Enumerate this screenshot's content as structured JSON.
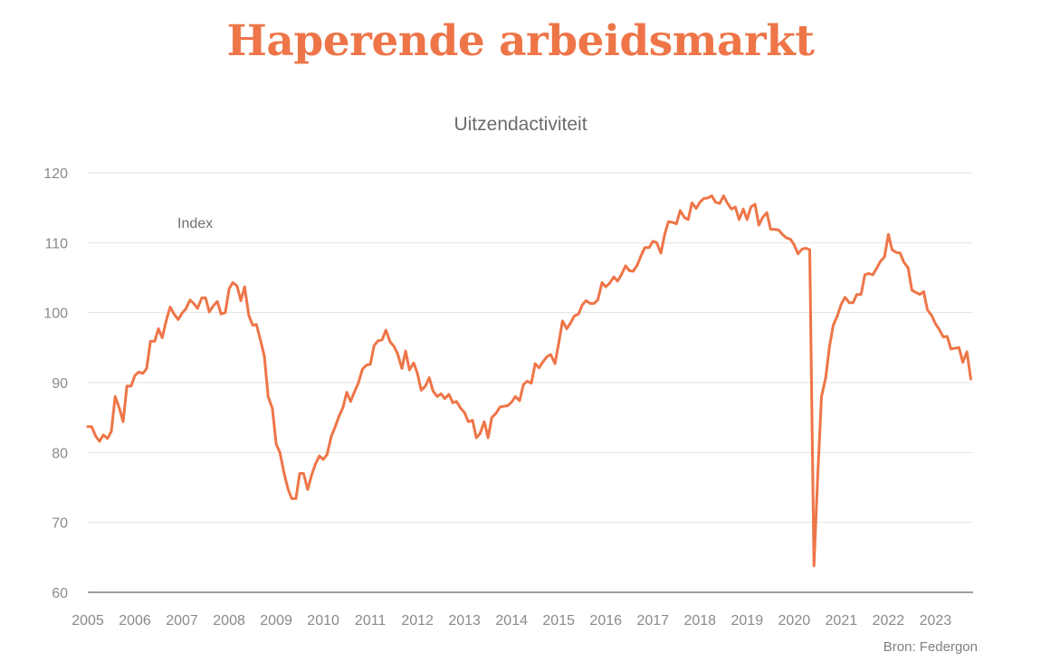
{
  "title": "Haperende arbeidsmarkt",
  "source": "Bron: Federgon",
  "colors": {
    "title": "#EE7548",
    "line": "#EE7548",
    "grid": "#e3e3e3",
    "axis": "#666666"
  },
  "chart_data": {
    "type": "line",
    "title": "Uitzendactiviteit",
    "annotation": "Index",
    "xlabel": "",
    "ylabel": "",
    "ylim": [
      60,
      120
    ],
    "yticks": [
      60,
      70,
      80,
      90,
      100,
      110,
      120
    ],
    "xlim": [
      2005,
      2023.8
    ],
    "xticks": [
      "2005",
      "2006",
      "2007",
      "2008",
      "2009",
      "2010",
      "2011",
      "2012",
      "2013",
      "2014",
      "2015",
      "2016",
      "2017",
      "2018",
      "2019",
      "2020",
      "2021",
      "2022",
      "2023"
    ],
    "grid": true,
    "series": [
      {
        "x": [
          2005.0,
          2005.08,
          2005.17,
          2005.25,
          2005.33,
          2005.42,
          2005.5,
          2005.58,
          2005.67,
          2005.75,
          2005.83,
          2005.92,
          2006.0,
          2006.08,
          2006.17,
          2006.25,
          2006.33,
          2006.42,
          2006.5,
          2006.58,
          2006.67,
          2006.75,
          2006.83,
          2006.92,
          2007.0,
          2007.08,
          2007.17,
          2007.25,
          2007.33,
          2007.42,
          2007.5,
          2007.58,
          2007.67,
          2007.75,
          2007.83,
          2007.92,
          2008.0,
          2008.08,
          2008.17,
          2008.25,
          2008.33,
          2008.42,
          2008.5,
          2008.58,
          2008.67,
          2008.75,
          2008.83,
          2008.92,
          2009.0,
          2009.08,
          2009.17,
          2009.25,
          2009.33,
          2009.42,
          2009.5,
          2009.58,
          2009.67,
          2009.75,
          2009.83,
          2009.92,
          2010.0,
          2010.08,
          2010.17,
          2010.25,
          2010.33,
          2010.42,
          2010.5,
          2010.58,
          2010.67,
          2010.75,
          2010.83,
          2010.92,
          2011.0,
          2011.08,
          2011.17,
          2011.25,
          2011.33,
          2011.42,
          2011.5,
          2011.58,
          2011.67,
          2011.75,
          2011.83,
          2011.92,
          2012.0,
          2012.08,
          2012.17,
          2012.25,
          2012.33,
          2012.42,
          2012.5,
          2012.58,
          2012.67,
          2012.75,
          2012.83,
          2012.92,
          2013.0,
          2013.08,
          2013.17,
          2013.25,
          2013.33,
          2013.42,
          2013.5,
          2013.58,
          2013.67,
          2013.75,
          2013.83,
          2013.92,
          2014.0,
          2014.08,
          2014.17,
          2014.25,
          2014.33,
          2014.42,
          2014.5,
          2014.58,
          2014.67,
          2014.75,
          2014.83,
          2014.92,
          2015.0,
          2015.08,
          2015.17,
          2015.25,
          2015.33,
          2015.42,
          2015.5,
          2015.58,
          2015.67,
          2015.75,
          2015.83,
          2015.92,
          2016.0,
          2016.08,
          2016.17,
          2016.25,
          2016.33,
          2016.42,
          2016.5,
          2016.58,
          2016.67,
          2016.75,
          2016.83,
          2016.92,
          2017.0,
          2017.08,
          2017.17,
          2017.25,
          2017.33,
          2017.42,
          2017.5,
          2017.58,
          2017.67,
          2017.75,
          2017.83,
          2017.92,
          2018.0,
          2018.08,
          2018.17,
          2018.25,
          2018.33,
          2018.42,
          2018.5,
          2018.58,
          2018.67,
          2018.75,
          2018.83,
          2018.92,
          2019.0,
          2019.08,
          2019.17,
          2019.25,
          2019.33,
          2019.42,
          2019.5,
          2019.58,
          2019.67,
          2019.75,
          2019.83,
          2019.92,
          2020.0,
          2020.08,
          2020.17,
          2020.25,
          2020.33,
          2020.42,
          2020.5,
          2020.58,
          2020.67,
          2020.75,
          2020.83,
          2020.92,
          2021.0,
          2021.08,
          2021.17,
          2021.25,
          2021.33,
          2021.42,
          2021.5,
          2021.58,
          2021.67,
          2021.75,
          2021.83,
          2021.92,
          2022.0,
          2022.08,
          2022.17,
          2022.25,
          2022.33,
          2022.42,
          2022.5,
          2022.58,
          2022.67,
          2022.75,
          2022.83,
          2022.92,
          2023.0,
          2023.08,
          2023.17,
          2023.25,
          2023.33,
          2023.42,
          2023.5,
          2023.58,
          2023.67,
          2023.75
        ],
        "values": [
          83.7,
          83.7,
          82.3,
          81.6,
          82.5,
          82.0,
          83.0,
          88.0,
          86.3,
          84.4,
          89.5,
          89.5,
          91.0,
          91.5,
          91.3,
          92.0,
          95.9,
          95.9,
          97.7,
          96.4,
          99.0,
          100.8,
          99.8,
          99.0,
          99.9,
          100.5,
          101.8,
          101.3,
          100.6,
          102.1,
          102.1,
          100.1,
          101.0,
          101.6,
          99.8,
          100.0,
          103.4,
          104.3,
          103.8,
          101.7,
          103.7,
          99.6,
          98.2,
          98.3,
          96.0,
          93.7,
          88.0,
          86.3,
          81.2,
          80.0,
          77.0,
          74.8,
          73.4,
          73.4,
          77.0,
          77.0,
          74.7,
          76.7,
          78.3,
          79.5,
          79.0,
          79.7,
          82.3,
          83.6,
          85.1,
          86.5,
          88.6,
          87.3,
          88.8,
          90.0,
          91.9,
          92.5,
          92.6,
          95.3,
          96.0,
          96.1,
          97.5,
          95.8,
          95.2,
          94.1,
          92.0,
          94.5,
          91.8,
          92.8,
          91.3,
          88.9,
          89.5,
          90.7,
          88.8,
          88.0,
          88.4,
          87.7,
          88.3,
          87.1,
          87.3,
          86.3,
          85.7,
          84.4,
          84.6,
          82.1,
          82.7,
          84.4,
          82.1,
          85.0,
          85.6,
          86.5,
          86.6,
          86.7,
          87.2,
          88.0,
          87.4,
          89.7,
          90.2,
          89.9,
          92.7,
          92.1,
          93.0,
          93.7,
          94.0,
          92.7,
          95.6,
          98.8,
          97.7,
          98.5,
          99.5,
          99.8,
          101.1,
          101.7,
          101.3,
          101.3,
          101.8,
          104.3,
          103.7,
          104.2,
          105.1,
          104.5,
          105.4,
          106.7,
          106.0,
          105.9,
          106.8,
          108.2,
          109.3,
          109.3,
          110.2,
          110.0,
          108.5,
          111.2,
          113.0,
          112.9,
          112.7,
          114.6,
          113.6,
          113.3,
          115.7,
          114.9,
          115.8,
          116.3,
          116.4,
          116.7,
          115.8,
          115.6,
          116.7,
          115.7,
          114.8,
          115.1,
          113.3,
          114.8,
          113.3,
          115.1,
          115.5,
          112.5,
          113.6,
          114.3,
          111.9,
          111.9,
          111.8,
          111.2,
          110.7,
          110.5,
          109.7,
          108.4,
          109.1,
          109.2,
          109.0,
          63.8,
          76.5,
          88.0,
          90.7,
          95.1,
          98.2,
          99.6,
          101.2,
          102.2,
          101.4,
          101.4,
          102.6,
          102.6,
          105.4,
          105.6,
          105.4,
          106.3,
          107.3,
          108.0,
          111.2,
          109.0,
          108.6,
          108.5,
          107.2,
          106.4,
          103.2,
          102.9,
          102.6,
          103.0,
          100.4,
          99.6,
          98.4,
          97.6,
          96.5,
          96.6,
          94.8,
          94.9,
          95.0,
          92.9,
          94.4,
          90.5
        ]
      }
    ]
  }
}
